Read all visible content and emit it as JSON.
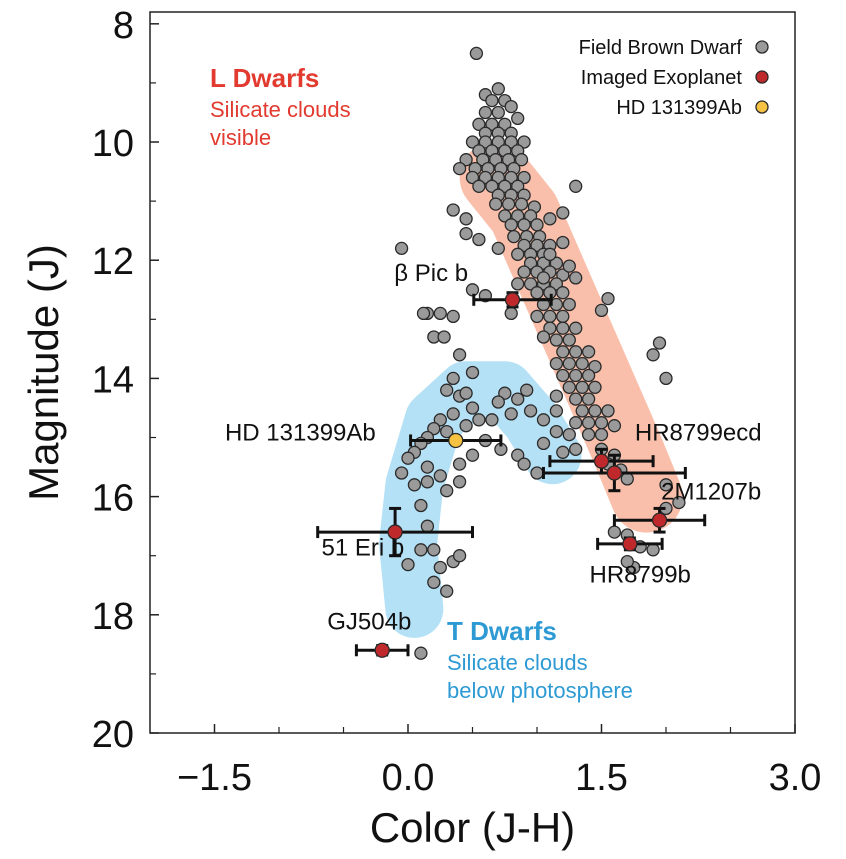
{
  "chart_data": {
    "type": "scatter",
    "xlabel": "Color (J-H)",
    "ylabel": "Magnitude (J)",
    "xlim": [
      -2.0,
      3.0
    ],
    "ylim": [
      20.0,
      7.8
    ],
    "y_inverted": true,
    "x_ticks": [
      -1.5,
      0.0,
      1.5,
      3.0
    ],
    "x_tick_labels": [
      "−1.5",
      "0.0",
      "1.5",
      "3.0"
    ],
    "y_ticks": [
      8,
      10,
      12,
      14,
      16,
      18,
      20
    ],
    "y_tick_labels": [
      "8",
      "10",
      "12",
      "14",
      "16",
      "18",
      "20"
    ],
    "grid": false,
    "legend_position": "top-right",
    "legend": [
      {
        "label": "Field Brown Dwarf",
        "color": "#9a9a9a"
      },
      {
        "label": "Imaged Exoplanet",
        "color": "#c0292b"
      },
      {
        "label": "HD 131399Ab",
        "color": "#f5c242"
      }
    ],
    "regions": [
      {
        "title": "L Dwarfs",
        "subtitle": [
          "Silicate clouds",
          "visible"
        ],
        "color": "#e23a2f",
        "band_color": "#f8b49b",
        "path": [
          [
            0.68,
            10.6
          ],
          [
            0.9,
            11.2
          ],
          [
            1.1,
            12.2
          ],
          [
            1.3,
            13.2
          ],
          [
            1.5,
            14.2
          ],
          [
            1.7,
            15.2
          ],
          [
            1.85,
            16.0
          ]
        ]
      },
      {
        "title": "T Dwarfs",
        "subtitle": [
          "Silicate clouds",
          "below photosphere"
        ],
        "color": "#2e9ad4",
        "band_color": "#a7dcf5",
        "path": [
          [
            0.05,
            17.9
          ],
          [
            0.0,
            16.8
          ],
          [
            0.05,
            15.8
          ],
          [
            0.2,
            14.7
          ],
          [
            0.45,
            14.2
          ],
          [
            0.75,
            14.2
          ],
          [
            0.95,
            14.7
          ],
          [
            1.12,
            15.3
          ]
        ]
      }
    ],
    "series": [
      {
        "name": "Field Brown Dwarf",
        "color": "#9a9a9a",
        "points": [
          [
            0.53,
            8.5
          ],
          [
            0.7,
            9.1
          ],
          [
            0.6,
            9.2
          ],
          [
            0.65,
            9.3
          ],
          [
            0.75,
            9.3
          ],
          [
            0.6,
            9.5
          ],
          [
            0.7,
            9.5
          ],
          [
            0.8,
            9.4
          ],
          [
            0.55,
            9.7
          ],
          [
            0.65,
            9.7
          ],
          [
            0.75,
            9.7
          ],
          [
            0.85,
            9.6
          ],
          [
            0.6,
            9.85
          ],
          [
            0.7,
            9.85
          ],
          [
            0.8,
            9.85
          ],
          [
            0.5,
            10.0
          ],
          [
            0.6,
            10.0
          ],
          [
            0.7,
            10.0
          ],
          [
            0.8,
            10.0
          ],
          [
            0.9,
            10.0
          ],
          [
            0.55,
            10.15
          ],
          [
            0.65,
            10.15
          ],
          [
            0.75,
            10.15
          ],
          [
            0.85,
            10.15
          ],
          [
            0.45,
            10.3
          ],
          [
            0.58,
            10.3
          ],
          [
            0.68,
            10.3
          ],
          [
            0.78,
            10.3
          ],
          [
            0.88,
            10.3
          ],
          [
            0.4,
            10.45
          ],
          [
            0.52,
            10.45
          ],
          [
            0.62,
            10.45
          ],
          [
            0.72,
            10.45
          ],
          [
            0.82,
            10.45
          ],
          [
            0.5,
            10.6
          ],
          [
            0.6,
            10.6
          ],
          [
            0.7,
            10.6
          ],
          [
            0.8,
            10.6
          ],
          [
            0.9,
            10.6
          ],
          [
            0.55,
            10.75
          ],
          [
            0.65,
            10.75
          ],
          [
            0.75,
            10.75
          ],
          [
            0.85,
            10.75
          ],
          [
            0.7,
            10.9
          ],
          [
            0.8,
            10.9
          ],
          [
            0.9,
            10.9
          ],
          [
            0.68,
            11.05
          ],
          [
            0.78,
            11.05
          ],
          [
            0.88,
            11.05
          ],
          [
            0.98,
            11.1
          ],
          [
            0.75,
            11.25
          ],
          [
            0.85,
            11.25
          ],
          [
            0.95,
            11.25
          ],
          [
            0.8,
            11.4
          ],
          [
            0.9,
            11.4
          ],
          [
            1.0,
            11.4
          ],
          [
            1.1,
            11.3
          ],
          [
            0.82,
            11.6
          ],
          [
            0.92,
            11.6
          ],
          [
            1.02,
            11.6
          ],
          [
            0.9,
            11.75
          ],
          [
            1.0,
            11.75
          ],
          [
            1.1,
            11.75
          ],
          [
            1.2,
            11.7
          ],
          [
            0.85,
            11.9
          ],
          [
            0.95,
            11.9
          ],
          [
            1.05,
            11.9
          ],
          [
            0.95,
            12.05
          ],
          [
            1.05,
            12.05
          ],
          [
            1.15,
            12.05
          ],
          [
            0.9,
            12.2
          ],
          [
            1.0,
            12.2
          ],
          [
            1.1,
            12.2
          ],
          [
            1.2,
            12.25
          ],
          [
            0.95,
            12.4
          ],
          [
            1.05,
            12.4
          ],
          [
            1.15,
            12.4
          ],
          [
            0.85,
            12.4
          ],
          [
            1.0,
            12.55
          ],
          [
            1.1,
            12.55
          ],
          [
            1.2,
            12.55
          ],
          [
            1.05,
            12.75
          ],
          [
            1.15,
            12.75
          ],
          [
            1.25,
            12.75
          ],
          [
            0.8,
            12.9
          ],
          [
            1.0,
            12.95
          ],
          [
            1.1,
            12.95
          ],
          [
            1.2,
            12.95
          ],
          [
            1.1,
            13.15
          ],
          [
            1.2,
            13.15
          ],
          [
            1.3,
            13.15
          ],
          [
            1.05,
            13.3
          ],
          [
            1.15,
            13.35
          ],
          [
            1.25,
            13.35
          ],
          [
            1.2,
            13.55
          ],
          [
            1.3,
            13.55
          ],
          [
            1.4,
            13.55
          ],
          [
            1.15,
            13.75
          ],
          [
            1.25,
            13.75
          ],
          [
            1.35,
            13.75
          ],
          [
            1.45,
            13.8
          ],
          [
            1.2,
            13.95
          ],
          [
            1.3,
            13.95
          ],
          [
            1.4,
            13.95
          ],
          [
            1.25,
            14.15
          ],
          [
            1.35,
            14.15
          ],
          [
            1.45,
            14.15
          ],
          [
            1.15,
            14.3
          ],
          [
            1.3,
            14.35
          ],
          [
            1.4,
            14.35
          ],
          [
            1.35,
            14.55
          ],
          [
            1.45,
            14.55
          ],
          [
            1.55,
            14.55
          ],
          [
            1.3,
            14.75
          ],
          [
            1.4,
            14.75
          ],
          [
            1.5,
            14.75
          ],
          [
            1.6,
            14.8
          ],
          [
            1.15,
            14.9
          ],
          [
            1.25,
            14.95
          ],
          [
            1.4,
            14.95
          ],
          [
            1.5,
            14.95
          ],
          [
            1.05,
            14.7
          ],
          [
            1.15,
            14.55
          ],
          [
            1.05,
            15.1
          ],
          [
            1.2,
            15.25
          ],
          [
            1.3,
            15.2
          ],
          [
            1.5,
            15.2
          ],
          [
            1.6,
            15.3
          ],
          [
            1.55,
            15.45
          ],
          [
            1.65,
            15.55
          ],
          [
            1.7,
            15.7
          ],
          [
            0.95,
            14.55
          ],
          [
            0.85,
            14.35
          ],
          [
            0.75,
            14.25
          ],
          [
            0.92,
            14.2
          ],
          [
            1.3,
            10.75
          ],
          [
            1.2,
            11.2
          ],
          [
            1.55,
            12.65
          ],
          [
            1.5,
            12.85
          ],
          [
            1.95,
            13.4
          ],
          [
            1.9,
            13.6
          ],
          [
            2.0,
            14.0
          ],
          [
            1.1,
            11.9
          ],
          [
            1.25,
            12.1
          ],
          [
            1.3,
            12.3
          ],
          [
            1.05,
            12.3
          ],
          [
            0.35,
            11.15
          ],
          [
            0.45,
            11.3
          ],
          [
            0.45,
            11.55
          ],
          [
            0.55,
            11.65
          ],
          [
            0.25,
            12.9
          ],
          [
            0.2,
            13.3
          ],
          [
            0.35,
            12.95
          ],
          [
            0.15,
            12.9
          ],
          [
            0.7,
            11.8
          ],
          [
            0.5,
            12.5
          ],
          [
            0.6,
            12.6
          ],
          [
            -0.05,
            11.8
          ],
          [
            0.12,
            12.9
          ],
          [
            0.28,
            13.3
          ],
          [
            0.4,
            13.6
          ],
          [
            0.5,
            13.9
          ],
          [
            0.35,
            14.0
          ],
          [
            0.3,
            14.2
          ],
          [
            0.4,
            14.3
          ],
          [
            0.45,
            14.25
          ],
          [
            0.5,
            14.5
          ],
          [
            0.35,
            14.6
          ],
          [
            0.25,
            14.7
          ],
          [
            0.2,
            14.85
          ],
          [
            0.15,
            15.0
          ],
          [
            0.1,
            15.1
          ],
          [
            0.05,
            15.25
          ],
          [
            0.0,
            15.35
          ],
          [
            0.15,
            15.5
          ],
          [
            0.25,
            15.65
          ],
          [
            0.4,
            15.75
          ],
          [
            0.3,
            15.9
          ],
          [
            0.15,
            15.75
          ],
          [
            0.3,
            14.9
          ],
          [
            0.45,
            14.8
          ],
          [
            0.5,
            15.3
          ],
          [
            0.4,
            15.45
          ],
          [
            0.55,
            14.7
          ],
          [
            0.65,
            14.7
          ],
          [
            0.7,
            14.4
          ],
          [
            0.8,
            14.6
          ],
          [
            -0.05,
            15.6
          ],
          [
            0.05,
            15.8
          ],
          [
            0.1,
            16.15
          ],
          [
            0.15,
            16.5
          ],
          [
            0.2,
            16.9
          ],
          [
            0.25,
            17.2
          ],
          [
            0.35,
            17.1
          ],
          [
            0.4,
            17.0
          ],
          [
            0.0,
            17.15
          ],
          [
            0.2,
            17.45
          ],
          [
            0.3,
            17.6
          ],
          [
            0.1,
            16.9
          ],
          [
            0.6,
            15.05
          ],
          [
            0.72,
            15.2
          ],
          [
            0.85,
            15.3
          ],
          [
            0.9,
            15.45
          ],
          [
            1.0,
            15.6
          ],
          [
            1.6,
            16.6
          ],
          [
            1.7,
            16.65
          ],
          [
            1.8,
            16.85
          ],
          [
            1.75,
            17.2
          ],
          [
            1.7,
            17.1
          ],
          [
            1.9,
            16.9
          ],
          [
            2.0,
            16.2
          ],
          [
            2.1,
            16.1
          ],
          [
            2.0,
            15.8
          ],
          [
            0.1,
            18.65
          ]
        ]
      },
      {
        "name": "Imaged Exoplanet",
        "color": "#c0292b",
        "points": [
          {
            "label": "β Pic b",
            "x": 0.81,
            "y": 12.67,
            "xerr": 0.3,
            "yerr": 0.12
          },
          {
            "label": "HR8799ecd",
            "x": 1.5,
            "y": 15.4,
            "xerr": 0.4,
            "yerr": 0.2
          },
          {
            "label": "HR8799ecd",
            "x": 1.6,
            "y": 15.6,
            "xerr": 0.55,
            "yerr": 0.3
          },
          {
            "label": "2M1207b",
            "x": 1.95,
            "y": 16.4,
            "xerr": 0.35,
            "yerr": 0.2
          },
          {
            "label": "HR8799b",
            "x": 1.72,
            "y": 16.8,
            "xerr": 0.25,
            "yerr": 0.1
          },
          {
            "label": "51 Eri b",
            "x": -0.1,
            "y": 16.6,
            "xerr": 0.6,
            "yerr": 0.4
          },
          {
            "label": "GJ504b",
            "x": -0.2,
            "y": 18.6,
            "xerr": 0.2,
            "yerr": 0.08
          }
        ]
      },
      {
        "name": "HD 131399Ab",
        "color": "#f5c242",
        "points": [
          {
            "label": "HD 131399Ab",
            "x": 0.37,
            "y": 15.05,
            "xerr": 0.35,
            "yerr": 0.05
          }
        ]
      }
    ],
    "annotations": [
      {
        "text": "β Pic b",
        "x": 0.18,
        "y": 12.35
      },
      {
        "text": "HD 131399Ab",
        "x": -0.25,
        "y": 15.05
      },
      {
        "text": "HR8799ecd",
        "x": 2.25,
        "y": 15.05
      },
      {
        "text": "2M1207b",
        "x": 2.35,
        "y": 16.05
      },
      {
        "text": "51 Eri b",
        "x": -0.35,
        "y": 17.0
      },
      {
        "text": "HR8799b",
        "x": 1.8,
        "y": 17.45
      },
      {
        "text": "GJ504b",
        "x": -0.3,
        "y": 18.25
      }
    ]
  }
}
